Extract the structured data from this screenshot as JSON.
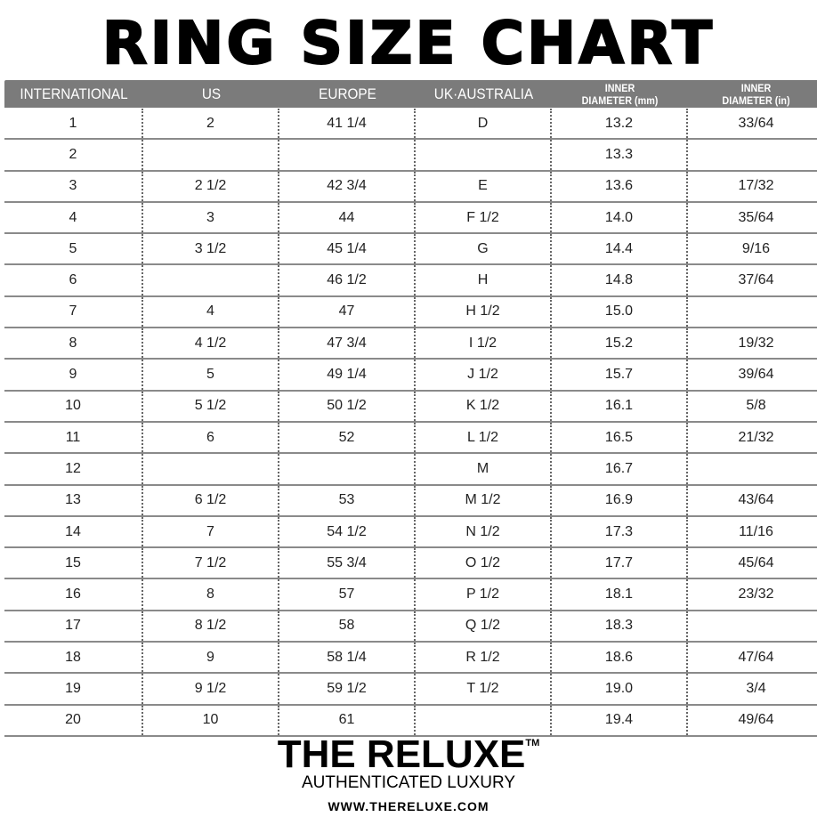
{
  "title": "RING SIZE CHART",
  "headers": [
    {
      "line1": "INTERNATIONAL",
      "line2": ""
    },
    {
      "line1": "US",
      "line2": ""
    },
    {
      "line1": "EUROPE",
      "line2": ""
    },
    {
      "line1": "UK·AUSTRALIA",
      "line2": ""
    },
    {
      "line1": "INNER",
      "line2": "DIAMETER (mm)"
    },
    {
      "line1": "INNER",
      "line2": "DIAMETER (in)"
    }
  ],
  "rows": [
    [
      "1",
      "2",
      "41 1/4",
      "D",
      "13.2",
      "33/64"
    ],
    [
      "2",
      "",
      "",
      "",
      "13.3",
      ""
    ],
    [
      "3",
      "2 1/2",
      "42 3/4",
      "E",
      "13.6",
      "17/32"
    ],
    [
      "4",
      "3",
      "44",
      "F 1/2",
      "14.0",
      "35/64"
    ],
    [
      "5",
      "3 1/2",
      "45 1/4",
      "G",
      "14.4",
      "9/16"
    ],
    [
      "6",
      "",
      "46 1/2",
      "H",
      "14.8",
      "37/64"
    ],
    [
      "7",
      "4",
      "47",
      "H 1/2",
      "15.0",
      ""
    ],
    [
      "8",
      "4 1/2",
      "47 3/4",
      "I 1/2",
      "15.2",
      "19/32"
    ],
    [
      "9",
      "5",
      "49 1/4",
      "J 1/2",
      "15.7",
      "39/64"
    ],
    [
      "10",
      "5 1/2",
      "50 1/2",
      "K 1/2",
      "16.1",
      "5/8"
    ],
    [
      "11",
      "6",
      "52",
      "L 1/2",
      "16.5",
      "21/32"
    ],
    [
      "12",
      "",
      "",
      "M",
      "16.7",
      ""
    ],
    [
      "13",
      "6 1/2",
      "53",
      "M 1/2",
      "16.9",
      "43/64"
    ],
    [
      "14",
      "7",
      "54 1/2",
      "N 1/2",
      "17.3",
      "11/16"
    ],
    [
      "15",
      "7 1/2",
      "55 3/4",
      "O 1/2",
      "17.7",
      "45/64"
    ],
    [
      "16",
      "8",
      "57",
      "P 1/2",
      "18.1",
      "23/32"
    ],
    [
      "17",
      "8 1/2",
      "58",
      "Q 1/2",
      "18.3",
      ""
    ],
    [
      "18",
      "9",
      "58 1/4",
      "R 1/2",
      "18.6",
      "47/64"
    ],
    [
      "19",
      "9 1/2",
      "59 1/2",
      "T 1/2",
      "19.0",
      "3/4"
    ],
    [
      "20",
      "10",
      "61",
      "",
      "19.4",
      "49/64"
    ]
  ],
  "brand": {
    "logo": "THE RELUXE",
    "trademark": "TM",
    "tagline": "AUTHENTICATED LUXURY",
    "url": "WWW.THERELUXE.COM"
  },
  "colors": {
    "header_bg": "#7b7b7b",
    "row_line": "#8a8a8a"
  }
}
